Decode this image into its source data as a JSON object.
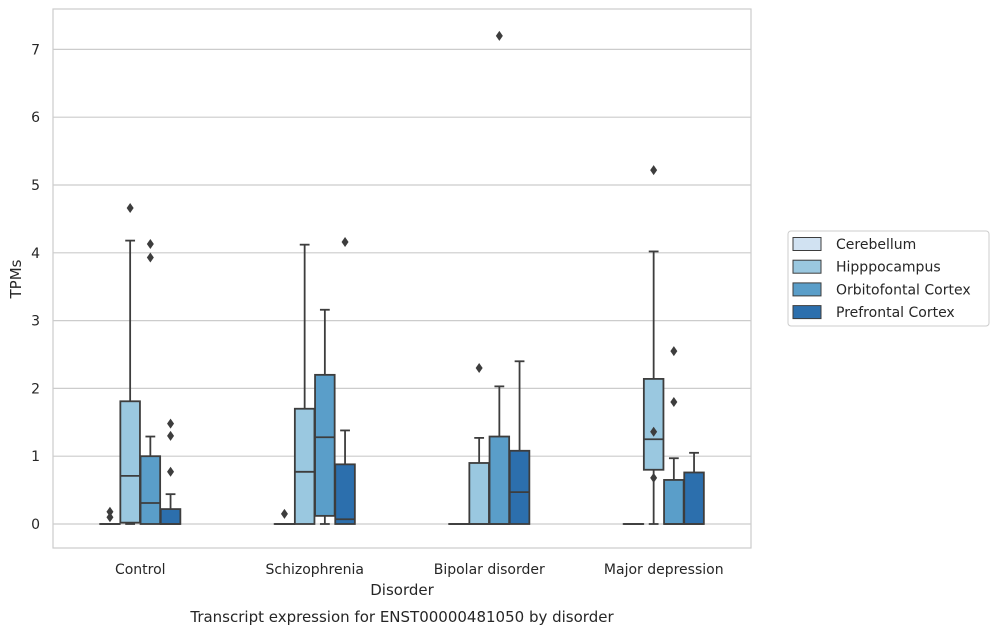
{
  "chart_data": {
    "type": "boxplot",
    "title": "Transcript expression for ENST00000481050 by disorder",
    "xlabel": "Disorder",
    "ylabel": "TPMs",
    "ylim": [
      -0.35,
      7.6
    ],
    "yticks": [
      0,
      1,
      2,
      3,
      4,
      5,
      6,
      7
    ],
    "grid": "horizontal",
    "legend_position": "right",
    "categories": [
      "Control",
      "Schizophrenia",
      "Bipolar disorder",
      "Major depression"
    ],
    "series": [
      {
        "name": "Cerebellum",
        "color": "#d1e2f2",
        "boxes": [
          {
            "q1": 0,
            "median": 0,
            "q3": 0,
            "whisker_low": 0,
            "whisker_high": 0,
            "outliers": [
              0.1,
              0.18
            ]
          },
          {
            "q1": 0,
            "median": 0,
            "q3": 0,
            "whisker_low": 0,
            "whisker_high": 0,
            "outliers": [
              0.15
            ]
          },
          {
            "q1": 0,
            "median": 0,
            "q3": 0,
            "whisker_low": 0,
            "whisker_high": 0,
            "outliers": []
          },
          {
            "q1": 0,
            "median": 0,
            "q3": 0,
            "whisker_low": 0,
            "whisker_high": 0,
            "outliers": []
          }
        ]
      },
      {
        "name": "Hipppocampus",
        "color": "#9ac8e0",
        "boxes": [
          {
            "q1": 0.02,
            "median": 0.71,
            "q3": 1.81,
            "whisker_low": 0,
            "whisker_high": 4.18,
            "outliers": [
              4.66
            ]
          },
          {
            "q1": 0,
            "median": 0.77,
            "q3": 1.7,
            "whisker_low": 0,
            "whisker_high": 4.12,
            "outliers": []
          },
          {
            "q1": 0,
            "median": 0,
            "q3": 0.9,
            "whisker_low": 0,
            "whisker_high": 1.27,
            "outliers": [
              2.3
            ]
          },
          {
            "q1": 0.8,
            "median": 1.25,
            "q3": 2.14,
            "whisker_low": 0,
            "whisker_high": 4.02,
            "outliers": [
              0.68,
              1.36,
              5.22
            ]
          }
        ]
      },
      {
        "name": "Orbitofontal Cortex",
        "color": "#5a9ec9",
        "boxes": [
          {
            "q1": 0,
            "median": 0.31,
            "q3": 1.0,
            "whisker_low": 0,
            "whisker_high": 1.29,
            "outliers": [
              3.93,
              4.13
            ]
          },
          {
            "q1": 0.12,
            "median": 1.28,
            "q3": 2.2,
            "whisker_low": 0,
            "whisker_high": 3.16,
            "outliers": []
          },
          {
            "q1": 0,
            "median": 0,
            "q3": 1.29,
            "whisker_low": 0,
            "whisker_high": 2.03,
            "outliers": [
              7.2
            ]
          },
          {
            "q1": 0,
            "median": 0,
            "q3": 0.65,
            "whisker_low": 0,
            "whisker_high": 0.97,
            "outliers": [
              1.8,
              2.55
            ]
          }
        ]
      },
      {
        "name": "Prefrontal Cortex",
        "color": "#2c6fad",
        "boxes": [
          {
            "q1": 0,
            "median": 0,
            "q3": 0.22,
            "whisker_low": 0,
            "whisker_high": 0.44,
            "outliers": [
              0.77,
              1.3,
              1.48
            ]
          },
          {
            "q1": 0,
            "median": 0.07,
            "q3": 0.88,
            "whisker_low": 0,
            "whisker_high": 1.38,
            "outliers": [
              4.16
            ]
          },
          {
            "q1": 0,
            "median": 0.47,
            "q3": 1.08,
            "whisker_low": 0,
            "whisker_high": 2.4,
            "outliers": []
          },
          {
            "q1": 0,
            "median": 0,
            "q3": 0.76,
            "whisker_low": 0,
            "whisker_high": 1.05,
            "outliers": []
          }
        ]
      }
    ]
  }
}
